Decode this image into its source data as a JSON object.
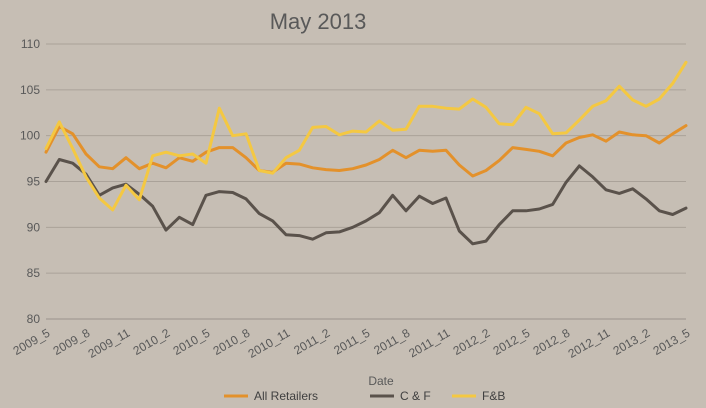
{
  "chart_data": {
    "type": "line",
    "title": "May 2013",
    "xlabel": "Date",
    "ylabel": "",
    "ylim": [
      80,
      110
    ],
    "yticks": [
      80,
      85,
      90,
      95,
      100,
      105,
      110
    ],
    "grid": "horizontal",
    "legend_position": "bottom",
    "x_tick_labels": [
      "2009_5",
      "2009_8",
      "2009_11",
      "2010_2",
      "2010_5",
      "2010_8",
      "2010_11",
      "2011_2",
      "2011_5",
      "2011_8",
      "2011_11",
      "2012_2",
      "2012_5",
      "2012_8",
      "2012_11",
      "2013_2",
      "2013_5"
    ],
    "x": [
      "2009_5",
      "2009_6",
      "2009_7",
      "2009_8",
      "2009_9",
      "2009_10",
      "2009_11",
      "2009_12",
      "2010_1",
      "2010_2",
      "2010_3",
      "2010_4",
      "2010_5",
      "2010_6",
      "2010_7",
      "2010_8",
      "2010_9",
      "2010_10",
      "2010_11",
      "2010_12",
      "2011_1",
      "2011_2",
      "2011_3",
      "2011_4",
      "2011_5",
      "2011_6",
      "2011_7",
      "2011_8",
      "2011_9",
      "2011_10",
      "2011_11",
      "2011_12",
      "2012_1",
      "2012_2",
      "2012_3",
      "2012_4",
      "2012_5",
      "2012_6",
      "2012_7",
      "2012_8",
      "2012_9",
      "2012_10",
      "2012_11",
      "2012_12",
      "2013_1",
      "2013_2",
      "2013_3",
      "2013_4",
      "2013_5"
    ],
    "series": [
      {
        "name": "All Retailers",
        "color": "#e3912b",
        "values": [
          98.2,
          101.0,
          100.2,
          98.0,
          96.6,
          96.4,
          97.6,
          96.4,
          97.0,
          96.5,
          97.6,
          97.2,
          98.2,
          98.7,
          98.7,
          97.6,
          96.2,
          96.0,
          97.0,
          96.9,
          96.5,
          96.3,
          96.2,
          96.4,
          96.8,
          97.4,
          98.4,
          97.6,
          98.4,
          98.3,
          98.4,
          96.8,
          95.6,
          96.2,
          97.3,
          98.7,
          98.5,
          98.3,
          97.8,
          99.2,
          99.8,
          100.1,
          99.4,
          100.4,
          100.1,
          100.0,
          99.2,
          100.2,
          101.1
        ]
      },
      {
        "name": "C & F",
        "color": "#5a524b",
        "values": [
          95.0,
          97.4,
          97.0,
          95.8,
          93.5,
          94.3,
          94.7,
          93.6,
          92.3,
          89.7,
          91.1,
          90.3,
          93.5,
          93.9,
          93.8,
          93.1,
          91.5,
          90.7,
          89.2,
          89.1,
          88.7,
          89.4,
          89.5,
          90.0,
          90.7,
          91.6,
          93.5,
          91.8,
          93.4,
          92.6,
          93.2,
          89.6,
          88.2,
          88.5,
          90.3,
          91.8,
          91.8,
          92.0,
          92.5,
          94.9,
          96.7,
          95.5,
          94.1,
          93.7,
          94.2,
          93.1,
          91.8,
          91.4,
          92.1
        ]
      },
      {
        "name": "F&B",
        "color": "#f4c842",
        "values": [
          98.6,
          101.5,
          98.6,
          95.5,
          93.2,
          91.9,
          94.6,
          93.0,
          97.8,
          98.2,
          97.8,
          98.0,
          97.0,
          103.0,
          100.0,
          100.2,
          96.2,
          95.9,
          97.6,
          98.4,
          100.9,
          101.0,
          100.1,
          100.5,
          100.4,
          101.6,
          100.6,
          100.7,
          103.2,
          103.2,
          103.0,
          102.9,
          104.0,
          103.1,
          101.3,
          101.2,
          103.1,
          102.4,
          100.2,
          100.3,
          101.7,
          103.2,
          103.8,
          105.4,
          103.9,
          103.2,
          104.0,
          105.7,
          108.0
        ]
      }
    ]
  }
}
